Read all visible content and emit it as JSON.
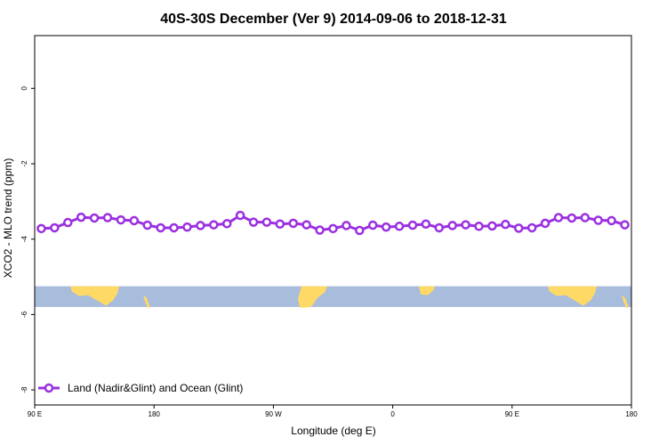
{
  "chart_data": {
    "type": "line",
    "title": "40S-30S December (Ver 9)   2014-09-06 to 2018-12-31",
    "xlabel": "Longitude (deg E)",
    "ylabel": "XCO2 - MLO trend (ppm)",
    "xlim": [
      90,
      540
    ],
    "ylim": [
      -8.4,
      1.4
    ],
    "x_ticks": [
      {
        "value": 90,
        "label": "90 E"
      },
      {
        "value": 180,
        "label": "180"
      },
      {
        "value": 270,
        "label": "90 W"
      },
      {
        "value": 360,
        "label": "0"
      },
      {
        "value": 450,
        "label": "90 E"
      },
      {
        "value": 540,
        "label": "180"
      }
    ],
    "y_ticks": [
      {
        "value": 0,
        "label": "0"
      },
      {
        "value": -2,
        "label": "-2"
      },
      {
        "value": -4,
        "label": "-4"
      },
      {
        "value": -6,
        "label": "-6"
      },
      {
        "value": -8,
        "label": "-8"
      }
    ],
    "map_band": {
      "ymin": -5.8,
      "ymax": -5.25,
      "ocean_color": "#a8bcdc",
      "land_color": "#ffd966"
    },
    "series": [
      {
        "name": "Land (Nadir&Glint) and Ocean (Glint)",
        "color": "#9b30e0",
        "x": [
          95,
          105,
          115,
          125,
          135,
          145,
          155,
          165,
          175,
          185,
          195,
          205,
          215,
          225,
          235,
          245,
          255,
          265,
          275,
          285,
          295,
          305,
          315,
          325,
          335,
          345,
          355,
          365,
          375,
          385,
          395,
          405,
          415,
          425,
          435,
          445,
          455,
          465,
          475,
          485,
          495,
          505,
          515,
          525,
          535
        ],
        "y": [
          -3.72,
          -3.7,
          -3.56,
          -3.42,
          -3.44,
          -3.43,
          -3.49,
          -3.51,
          -3.63,
          -3.7,
          -3.7,
          -3.68,
          -3.64,
          -3.62,
          -3.59,
          -3.37,
          -3.55,
          -3.55,
          -3.6,
          -3.58,
          -3.62,
          -3.76,
          -3.72,
          -3.64,
          -3.77,
          -3.63,
          -3.68,
          -3.66,
          -3.63,
          -3.6,
          -3.7,
          -3.64,
          -3.62,
          -3.66,
          -3.65,
          -3.61,
          -3.71,
          -3.7,
          -3.58,
          -3.43,
          -3.44,
          -3.43,
          -3.5,
          -3.51,
          -3.62
        ]
      }
    ],
    "legend": {
      "position": "bottom-left",
      "label": "Land (Nadir&Glint) and Ocean (Glint)"
    }
  }
}
